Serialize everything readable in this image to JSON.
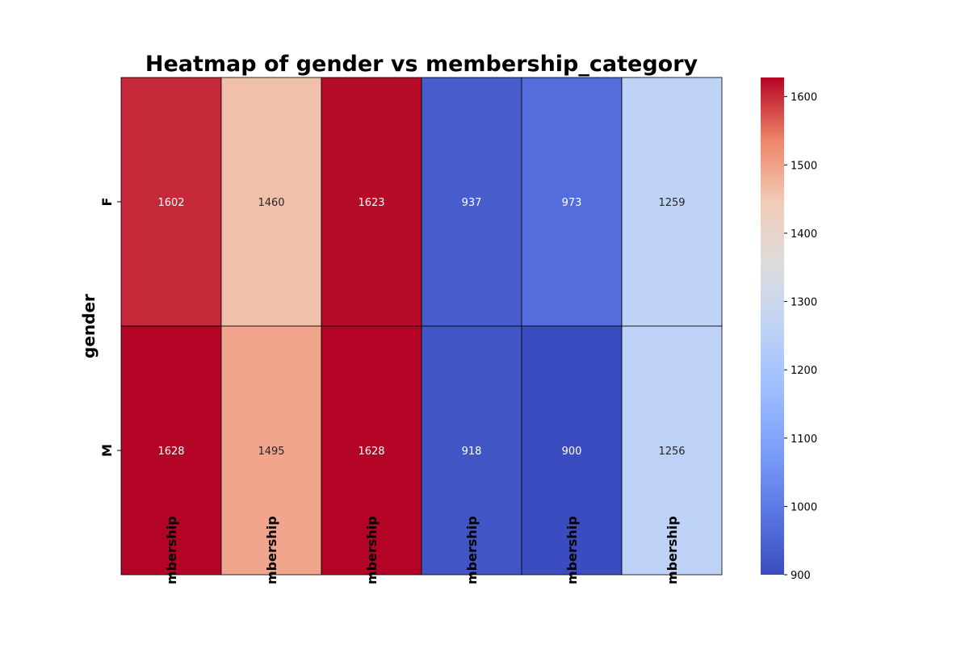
{
  "chart_data": {
    "type": "heatmap",
    "title": "Heatmap of gender vs membership_category",
    "ylabel": "gender",
    "xlabel": "",
    "rows": [
      "F",
      "M"
    ],
    "columns": [
      "mbership",
      "mbership",
      "mbership",
      "mbership",
      "mbership",
      "mbership"
    ],
    "values": [
      [
        1602,
        1460,
        1623,
        937,
        973,
        1259
      ],
      [
        1628,
        1495,
        1628,
        918,
        900,
        1256
      ]
    ],
    "colormap": "coolwarm",
    "colorbar": {
      "min": 900,
      "max": 1628,
      "ticks": [
        900,
        1000,
        1100,
        1200,
        1300,
        1400,
        1500,
        1600
      ]
    },
    "grid": true,
    "legend": "colorbar-right"
  }
}
